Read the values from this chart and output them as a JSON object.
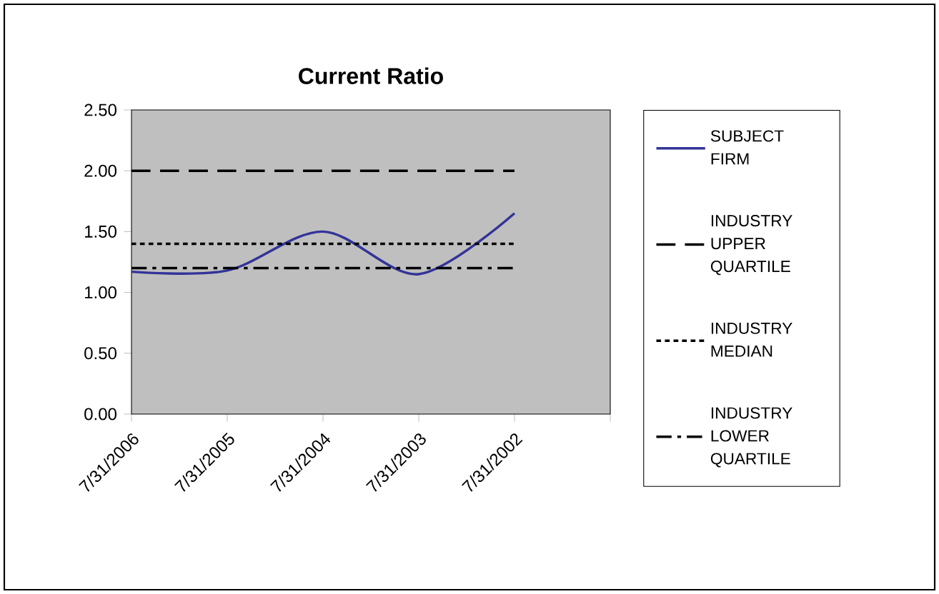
{
  "chart_data": {
    "type": "line",
    "title": "Current Ratio",
    "categories": [
      "7/31/2006",
      "7/31/2005",
      "7/31/2004",
      "7/31/2003",
      "7/31/2002",
      null
    ],
    "series": [
      {
        "name": "SUBJECT FIRM",
        "color": "#333399",
        "line_style": "solid",
        "values": [
          1.17,
          1.18,
          1.5,
          1.15,
          1.65,
          null
        ]
      },
      {
        "name": "INDUSTRY UPPER QUARTILE",
        "color": "#000000",
        "line_style": "dashed",
        "values": [
          2.0,
          2.0,
          2.0,
          2.0,
          2.0,
          null
        ]
      },
      {
        "name": "INDUSTRY MEDIAN",
        "color": "#000000",
        "line_style": "dotted",
        "values": [
          1.4,
          1.4,
          1.4,
          1.4,
          1.4,
          null
        ]
      },
      {
        "name": "INDUSTRY LOWER QUARTILE",
        "color": "#000000",
        "line_style": "dashdot",
        "values": [
          1.2,
          1.2,
          1.2,
          1.2,
          1.2,
          null
        ]
      }
    ],
    "ylim": [
      0,
      2.5
    ],
    "yticks": [
      {
        "value": 0,
        "label": "0.00"
      },
      {
        "value": 0.5,
        "label": "0.50"
      },
      {
        "value": 1,
        "label": "1.00"
      },
      {
        "value": 1.5,
        "label": "1.50"
      },
      {
        "value": 2,
        "label": "2.00"
      },
      {
        "value": 2.5,
        "label": "2.50"
      }
    ],
    "legend": "right",
    "marker": "none"
  }
}
